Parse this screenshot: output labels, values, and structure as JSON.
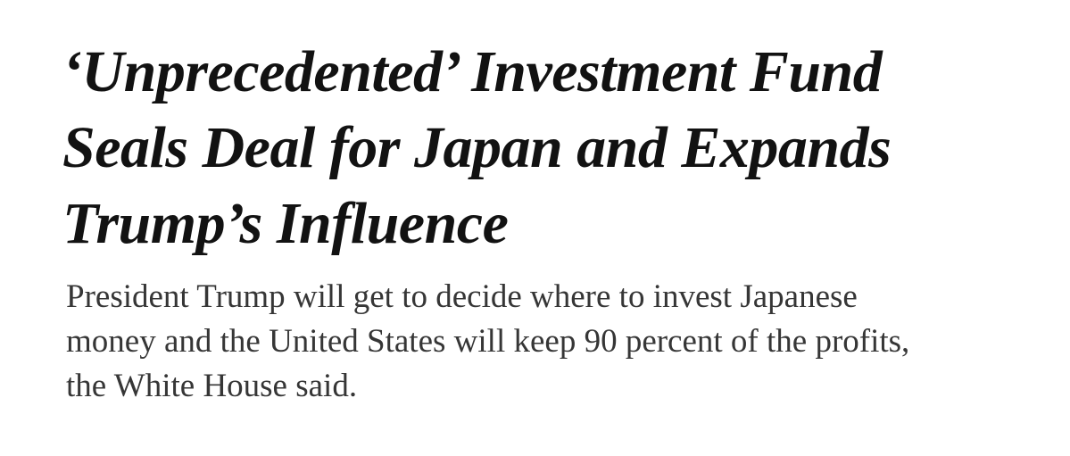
{
  "article": {
    "headline_lines": [
      "‘Unprecedented’ Investment Fund",
      "Seals Deal for Japan and Expands",
      "Trump’s Influence"
    ],
    "summary_lines": [
      "President Trump will get to decide where to invest Japanese",
      "money and the United States will keep 90 percent of the profits,",
      "the White House said."
    ]
  },
  "colors": {
    "headline": "#121212",
    "summary": "#363636",
    "background": "#ffffff"
  }
}
